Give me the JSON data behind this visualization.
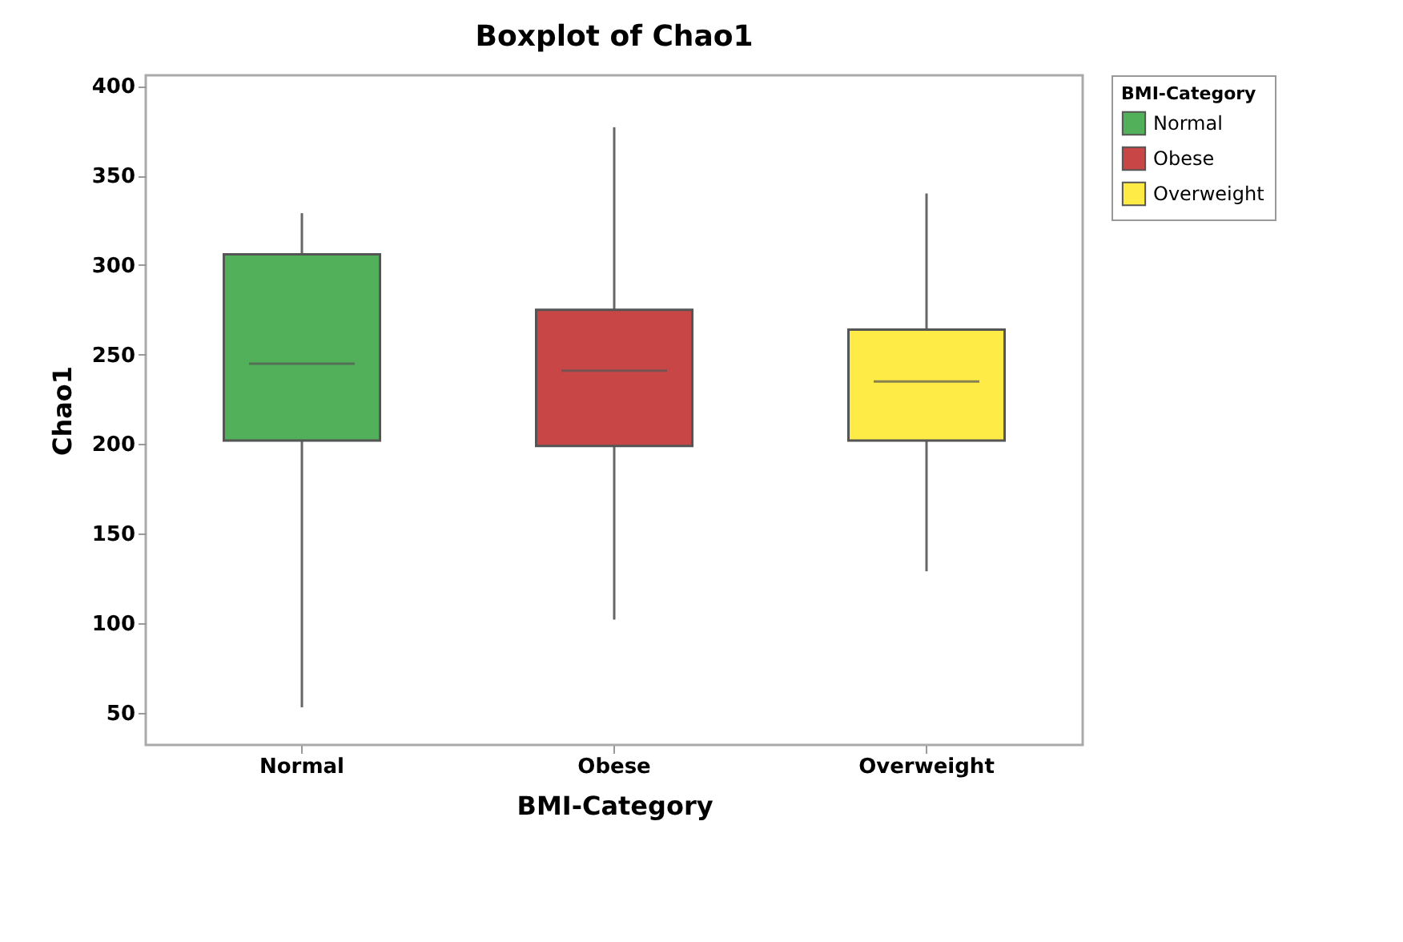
{
  "chart_data": {
    "type": "box",
    "title": "Boxplot of Chao1",
    "xlabel": "BMI-Category",
    "ylabel": "Chao1",
    "legend_title": "BMI-Category",
    "categories": [
      "Normal",
      "Obese",
      "Overweight"
    ],
    "series": [
      {
        "name": "Normal",
        "color": "#52b05a",
        "boxes": [
          {
            "low": 53,
            "q1": 202,
            "median": 245,
            "q3": 306,
            "high": 329
          },
          null,
          null
        ]
      },
      {
        "name": "Obese",
        "color": "#c84646",
        "boxes": [
          null,
          {
            "low": 102,
            "q1": 199,
            "median": 241,
            "q3": 275,
            "high": 377
          },
          null
        ]
      },
      {
        "name": "Overweight",
        "color": "#ffeb46",
        "boxes": [
          null,
          null,
          {
            "low": 129,
            "q1": 202,
            "median": 235,
            "q3": 264,
            "high": 340
          }
        ]
      }
    ],
    "ylim": [
      32,
      406
    ],
    "yticks": [
      50,
      100,
      150,
      200,
      250,
      300,
      350,
      400
    ],
    "grid": false,
    "legend": "top right"
  }
}
